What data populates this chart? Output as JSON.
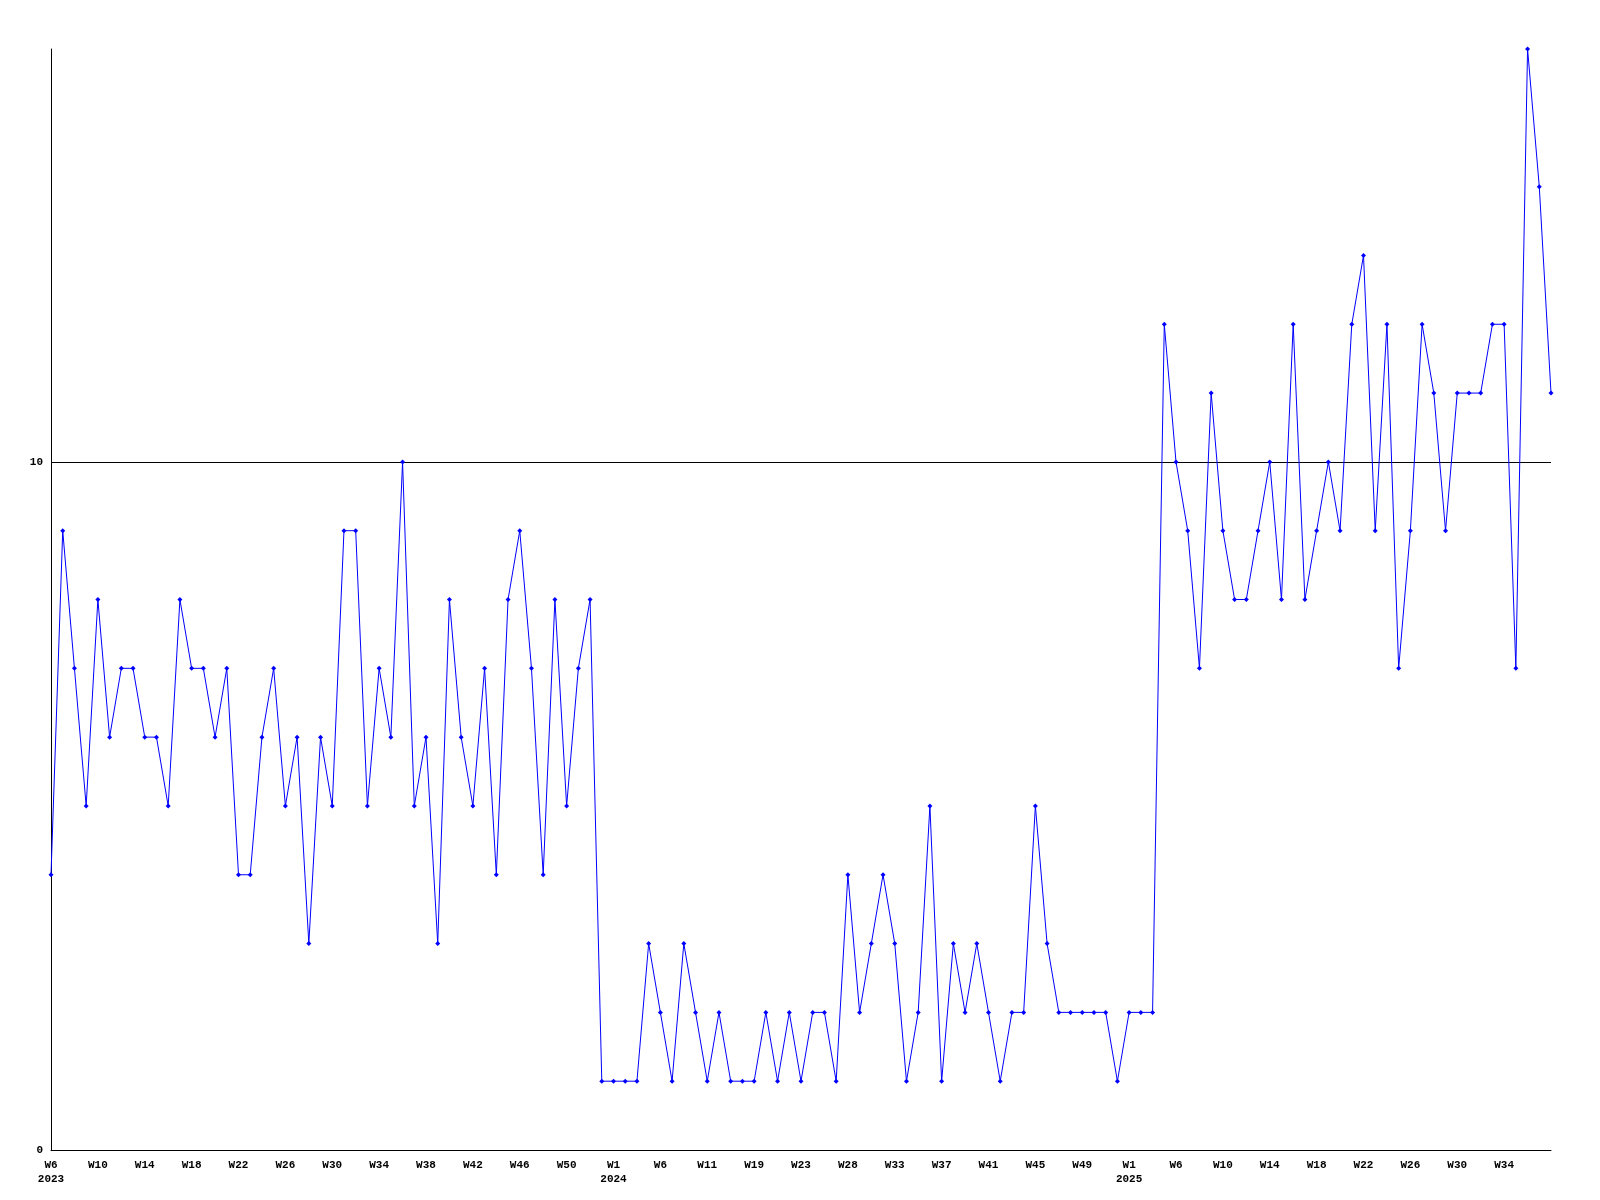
{
  "chart_data": {
    "type": "line",
    "marker": "diamond",
    "line_style": "solid",
    "grid": "y",
    "color": "#0000ff",
    "ylim": [
      0,
      16
    ],
    "yticks": [
      0,
      10
    ],
    "categories": [
      "W6\n2023",
      null,
      null,
      null,
      "W10",
      null,
      null,
      null,
      "W14",
      null,
      null,
      null,
      "W18",
      null,
      null,
      null,
      "W22",
      null,
      null,
      null,
      "W26",
      null,
      null,
      null,
      "W30",
      null,
      null,
      null,
      "W34",
      null,
      null,
      null,
      "W38",
      null,
      null,
      null,
      "W42",
      null,
      null,
      null,
      "W46",
      null,
      null,
      null,
      "W50",
      null,
      null,
      null,
      "W1\n2024",
      null,
      null,
      null,
      "W6",
      null,
      null,
      null,
      "W11",
      null,
      null,
      null,
      "W19",
      null,
      null,
      null,
      "W23",
      null,
      null,
      null,
      "W28",
      null,
      null,
      null,
      "W33",
      null,
      null,
      null,
      "W37",
      null,
      null,
      null,
      "W41",
      null,
      null,
      null,
      "W45",
      null,
      null,
      null,
      "W49",
      null,
      null,
      null,
      "W1\n2025",
      null,
      null,
      null,
      "W6",
      null,
      null,
      null,
      "W10",
      null,
      null,
      null,
      "W14",
      null,
      null,
      null,
      "W18",
      null,
      null,
      null,
      "W22",
      null,
      null,
      null,
      "W26",
      null,
      null,
      null,
      "W30",
      null,
      null,
      null,
      "W34",
      null,
      null,
      null,
      null
    ],
    "values": [
      4,
      9,
      7,
      5,
      8,
      6,
      7,
      7,
      6,
      6,
      5,
      8,
      7,
      7,
      6,
      7,
      4,
      4,
      6,
      7,
      5,
      6,
      3,
      6,
      5,
      9,
      9,
      5,
      7,
      6,
      10,
      5,
      6,
      3,
      8,
      6,
      5,
      7,
      4,
      8,
      9,
      7,
      4,
      8,
      5,
      7,
      8,
      1,
      1,
      1,
      1,
      3,
      2,
      1,
      3,
      2,
      1,
      2,
      1,
      1,
      1,
      2,
      1,
      2,
      1,
      2,
      2,
      1,
      4,
      2,
      3,
      4,
      3,
      1,
      2,
      5,
      1,
      3,
      2,
      3,
      2,
      1,
      2,
      2,
      5,
      3,
      2,
      2,
      2,
      2,
      2,
      1,
      2,
      2,
      2,
      12,
      10,
      9,
      7,
      11,
      9,
      8,
      8,
      9,
      10,
      8,
      12,
      8,
      9,
      10,
      9,
      12,
      13,
      9,
      12,
      7,
      9,
      12,
      11,
      9,
      11,
      11,
      11,
      12,
      12,
      7,
      16,
      14,
      11
    ]
  }
}
